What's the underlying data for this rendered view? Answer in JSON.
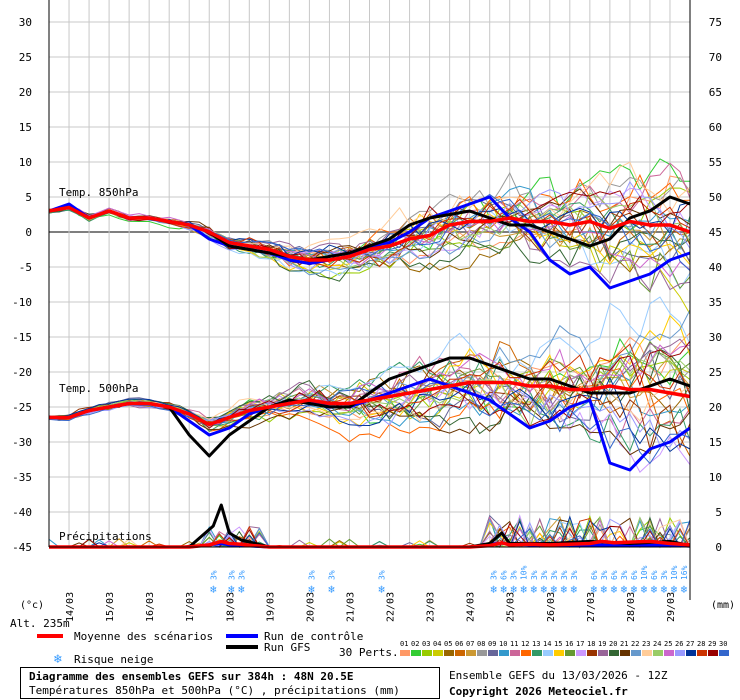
{
  "chart_data": {
    "type": "line",
    "title": "Diagramme des ensembles GEFS sur 384h : 48N 20.5E",
    "subtitle": "Températures 850hPa et 500hPa (°C) , précipitations (mm)",
    "run_label": "Ensemble GEFS du 13/03/2026 - 12Z",
    "copyright": "Copyright 2026 Meteociel.fr",
    "altitude": "Alt. 235m",
    "left_unit": "(°c)",
    "right_unit": "(mm)",
    "panel_labels": {
      "t850": "Temp. 850hPa",
      "t500": "Temp. 500hPa",
      "precip": "Précipitations"
    },
    "left_ticks": [
      30,
      25,
      20,
      15,
      10,
      5,
      0,
      -5,
      -10,
      -15,
      -20,
      -25,
      -30,
      -35,
      -40,
      -45
    ],
    "right_ticks": [
      75,
      70,
      65,
      60,
      55,
      50,
      45,
      40,
      35,
      30,
      25,
      20,
      15,
      10,
      5,
      0
    ],
    "ylim": [
      -45,
      30
    ],
    "x_tick_labels": [
      "14/03",
      "15/03",
      "16/03",
      "17/03",
      "18/03",
      "19/03",
      "20/03",
      "21/03",
      "22/03",
      "23/03",
      "24/03",
      "25/03",
      "26/03",
      "27/03",
      "28/03",
      "29/03"
    ],
    "x_range_days": [
      13.5,
      29.5
    ],
    "legend": {
      "mean": "Moyenne des scénarios",
      "control": "Run de contrôle",
      "gfs": "Run GFS",
      "snow": "Risque neige",
      "perts": "30 Perts.",
      "member_ids": [
        "01",
        "02",
        "03",
        "04",
        "05",
        "06",
        "07",
        "08",
        "09",
        "10",
        "11",
        "12",
        "13",
        "14",
        "15",
        "16",
        "17",
        "18",
        "19",
        "20",
        "21",
        "22",
        "23",
        "24",
        "25",
        "26",
        "27",
        "28",
        "29",
        "30"
      ],
      "member_colors": [
        "#ff9966",
        "#33cc33",
        "#99cc00",
        "#cccc00",
        "#996600",
        "#cc6600",
        "#cc9933",
        "#999999",
        "#666699",
        "#3399cc",
        "#cc6699",
        "#ff6600",
        "#339966",
        "#99ccff",
        "#ffcc00",
        "#669933",
        "#cc99ff",
        "#993300",
        "#996699",
        "#336633",
        "#663300",
        "#6699cc",
        "#ffcc99",
        "#99cc66",
        "#cc66cc",
        "#9999ff",
        "#003399",
        "#cc3300",
        "#990000",
        "#3366cc"
      ]
    },
    "snow_markers": [
      {
        "x": 17.6,
        "pct": "3%"
      },
      {
        "x": 18.05,
        "pct": "3%"
      },
      {
        "x": 18.3,
        "pct": "3%"
      },
      {
        "x": 20.05,
        "pct": "3%"
      },
      {
        "x": 20.55,
        "pct": "3%"
      },
      {
        "x": 21.8,
        "pct": "3%"
      },
      {
        "x": 24.6,
        "pct": "3%"
      },
      {
        "x": 24.85,
        "pct": "6%"
      },
      {
        "x": 25.1,
        "pct": "3%"
      },
      {
        "x": 25.35,
        "pct": "10%"
      },
      {
        "x": 25.6,
        "pct": "3%"
      },
      {
        "x": 25.85,
        "pct": "3%"
      },
      {
        "x": 26.1,
        "pct": "3%"
      },
      {
        "x": 26.35,
        "pct": "3%"
      },
      {
        "x": 26.6,
        "pct": "3%"
      },
      {
        "x": 27.1,
        "pct": "6%"
      },
      {
        "x": 27.35,
        "pct": "3%"
      },
      {
        "x": 27.6,
        "pct": "6%"
      },
      {
        "x": 27.85,
        "pct": "3%"
      },
      {
        "x": 28.1,
        "pct": "6%"
      },
      {
        "x": 28.35,
        "pct": "10%"
      },
      {
        "x": 28.6,
        "pct": "6%"
      },
      {
        "x": 28.85,
        "pct": "3%"
      },
      {
        "x": 29.1,
        "pct": "10%"
      },
      {
        "x": 29.35,
        "pct": "16%"
      }
    ],
    "series": [
      {
        "name": "Moyenne des scénarios",
        "panel": "t850",
        "color": "#ff0000",
        "x": [
          13.5,
          14,
          14.5,
          15,
          15.5,
          16,
          16.5,
          17,
          17.5,
          18,
          18.5,
          19,
          19.5,
          20,
          20.5,
          21,
          21.5,
          22,
          22.5,
          23,
          23.5,
          24,
          24.5,
          25,
          25.5,
          26,
          26.5,
          27,
          27.5,
          28,
          28.5,
          29,
          29.5
        ],
        "y": [
          3,
          3.5,
          2,
          3,
          2,
          2,
          1.5,
          1,
          0,
          -1.5,
          -2,
          -2.5,
          -3.5,
          -4,
          -4,
          -3.5,
          -2.5,
          -2,
          -1,
          -0.5,
          1,
          1.5,
          1.5,
          2,
          1.5,
          1.5,
          1,
          1.5,
          0.5,
          1.5,
          1,
          1,
          0
        ]
      },
      {
        "name": "Run de contrôle",
        "panel": "t850",
        "color": "#0000ff",
        "x": [
          13.5,
          14,
          14.5,
          15,
          15.5,
          16,
          16.5,
          17,
          17.5,
          18,
          18.5,
          19,
          19.5,
          20,
          20.5,
          21,
          21.5,
          22,
          22.5,
          23,
          23.5,
          24,
          24.5,
          25,
          25.5,
          26,
          26.5,
          27,
          27.5,
          28,
          28.5,
          29,
          29.5
        ],
        "y": [
          3,
          4,
          2,
          3,
          2,
          2,
          1.5,
          1,
          -1,
          -2,
          -2.5,
          -3,
          -4,
          -4.5,
          -4,
          -3.5,
          -2,
          -1.5,
          0,
          2,
          3,
          4,
          5,
          2,
          0,
          -4,
          -6,
          -5,
          -8,
          -7,
          -6,
          -4,
          -3
        ]
      },
      {
        "name": "Run GFS",
        "panel": "t850",
        "color": "#000000",
        "x": [
          13.5,
          14,
          14.5,
          15,
          15.5,
          16,
          16.5,
          17,
          17.5,
          18,
          18.5,
          19,
          19.5,
          20,
          20.5,
          21,
          21.5,
          22,
          22.5,
          23,
          23.5,
          24,
          24.5,
          25,
          25.5,
          26,
          26.5,
          27,
          27.5,
          28,
          28.5,
          29,
          29.5
        ],
        "y": [
          3,
          3.5,
          2,
          3,
          2,
          2,
          1.5,
          1,
          0,
          -2,
          -2.5,
          -3,
          -3.5,
          -4,
          -3.5,
          -3,
          -2,
          -1,
          1,
          2,
          2.5,
          3,
          2,
          1,
          1,
          0,
          -1,
          -2,
          -1,
          2,
          3,
          5,
          4
        ]
      },
      {
        "name": "Moyenne des scénarios",
        "panel": "t500",
        "color": "#ff0000",
        "x": [
          13.5,
          14,
          14.5,
          15,
          15.5,
          16,
          16.5,
          17,
          17.5,
          18,
          18.5,
          19,
          19.5,
          20,
          20.5,
          21,
          21.5,
          22,
          22.5,
          23,
          23.5,
          24,
          24.5,
          25,
          25.5,
          26,
          26.5,
          27,
          27.5,
          28,
          28.5,
          29,
          29.5
        ],
        "y": [
          -26.5,
          -26.5,
          -25.5,
          -25,
          -24.5,
          -24.5,
          -25,
          -26,
          -27.5,
          -26.5,
          -25.5,
          -25,
          -24.5,
          -24,
          -24.5,
          -24.5,
          -24,
          -23.5,
          -23,
          -22.5,
          -22,
          -21.5,
          -21.5,
          -21.5,
          -22,
          -22,
          -22.5,
          -22.5,
          -22,
          -22.5,
          -22.5,
          -23,
          -23.5
        ]
      },
      {
        "name": "Run de contrôle",
        "panel": "t500",
        "color": "#0000ff",
        "x": [
          13.5,
          14,
          14.5,
          15,
          15.5,
          16,
          16.5,
          17,
          17.5,
          18,
          18.5,
          19,
          19.5,
          20,
          20.5,
          21,
          21.5,
          22,
          22.5,
          23,
          23.5,
          24,
          24.5,
          25,
          25.5,
          26,
          26.5,
          27,
          27.5,
          28,
          28.5,
          29,
          29.5
        ],
        "y": [
          -26.5,
          -26.5,
          -25.5,
          -25,
          -24.5,
          -24.5,
          -25,
          -27,
          -29,
          -28,
          -26,
          -25,
          -24.5,
          -24,
          -25,
          -25,
          -24,
          -23,
          -22,
          -21,
          -22,
          -23,
          -24,
          -26,
          -28,
          -27,
          -25,
          -24,
          -33,
          -34,
          -31,
          -30,
          -28
        ]
      },
      {
        "name": "Run GFS",
        "panel": "t500",
        "color": "#000000",
        "x": [
          13.5,
          14,
          14.5,
          15,
          15.5,
          16,
          16.5,
          17,
          17.5,
          18,
          18.5,
          19,
          19.5,
          20,
          20.5,
          21,
          21.5,
          22,
          22.5,
          23,
          23.5,
          24,
          24.5,
          25,
          25.5,
          26,
          26.5,
          27,
          27.5,
          28,
          28.5,
          29,
          29.5
        ],
        "y": [
          -26.5,
          -26.5,
          -25.5,
          -25,
          -24.5,
          -24.5,
          -25,
          -29,
          -32,
          -29,
          -27,
          -25,
          -24,
          -24.5,
          -25,
          -25,
          -23,
          -21,
          -20,
          -19,
          -18,
          -18,
          -19,
          -20,
          -21,
          -21,
          -22,
          -23,
          -23,
          -23,
          -22,
          -21,
          -22
        ]
      },
      {
        "name": "Moyenne des scénarios",
        "panel": "precip",
        "color": "#ff0000",
        "x": [
          13.5,
          14,
          15,
          16,
          17,
          17.5,
          17.8,
          18,
          18.3,
          18.6,
          19,
          20,
          21,
          22,
          23,
          24,
          24.5,
          24.8,
          25,
          25.5,
          26,
          26.5,
          27,
          27.3,
          27.6,
          28,
          28.5,
          29,
          29.5
        ],
        "y": [
          0,
          0,
          0,
          0,
          0,
          0.3,
          0.8,
          0.5,
          0.4,
          0.2,
          0,
          0,
          0,
          0,
          0,
          0,
          0.2,
          0.6,
          0.3,
          0.4,
          0.3,
          0.4,
          0.5,
          0.8,
          0.6,
          0.7,
          0.8,
          0.5,
          0.3
        ]
      },
      {
        "name": "Run de contrôle",
        "panel": "precip",
        "color": "#0000ff",
        "x": [
          13.5,
          14,
          15,
          16,
          17,
          17.8,
          18,
          19,
          20,
          21,
          22,
          23,
          24,
          24.8,
          25,
          26,
          27,
          28,
          29,
          29.5
        ],
        "y": [
          0,
          0,
          0,
          0,
          0,
          0.5,
          0.3,
          0,
          0,
          0,
          0,
          0,
          0,
          0.6,
          0.4,
          0.2,
          0.3,
          0.2,
          0.3,
          0.1
        ]
      },
      {
        "name": "Run GFS",
        "panel": "precip",
        "color": "#000000",
        "x": [
          13.5,
          14,
          15,
          16,
          17,
          17.6,
          17.8,
          18,
          18.3,
          19,
          20,
          21,
          22,
          23,
          24,
          24.5,
          24.8,
          25,
          26,
          27,
          28,
          29,
          29.5
        ],
        "y": [
          0,
          0,
          0,
          0,
          0,
          3,
          6,
          2,
          1,
          0,
          0,
          0,
          0,
          0,
          0,
          0.5,
          2,
          0.5,
          0.5,
          0.8,
          0.5,
          0.8,
          0.2
        ]
      }
    ]
  }
}
